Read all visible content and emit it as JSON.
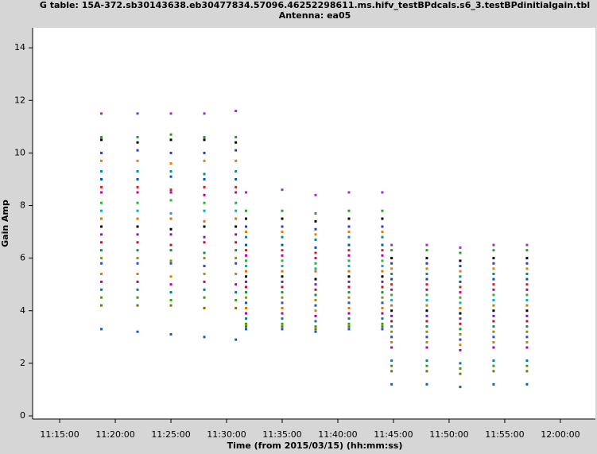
{
  "chart_data": {
    "type": "scatter",
    "title": "G table: 15A-372.sb30143638.eb30477834.57096.46252298611.ms.hifv_testBPdcals.s6_3.testBPdinitialgain.tbl",
    "subtitle": "Antenna: ea05",
    "xlabel": "Time (from 2015/03/15) (hh:mm:ss)",
    "ylabel": "Gain Amp",
    "xlim": [
      "11:12:34",
      "12:03:09"
    ],
    "xticks": [
      "11:15:00",
      "11:20:00",
      "11:25:00",
      "11:30:00",
      "11:35:00",
      "11:40:00",
      "11:45:00",
      "11:50:00",
      "11:55:00",
      "12:00:00"
    ],
    "ylim": [
      -0.12,
      14.76
    ],
    "yticks": [
      0,
      2,
      4,
      6,
      8,
      10,
      12,
      14
    ],
    "x": [
      "11:18:45",
      "11:22:00",
      "11:25:00",
      "11:28:00",
      "11:30:50",
      "11:31:45",
      "11:35:00",
      "11:38:00",
      "11:41:00",
      "11:44:00",
      "11:44:50",
      "11:48:00",
      "11:51:00",
      "11:54:00",
      "11:57:00"
    ],
    "series": [
      {
        "color": "#9b30c8",
        "values": [
          11.5,
          11.5,
          11.5,
          11.5,
          11.6,
          8.5,
          8.6,
          8.4,
          8.5,
          8.5,
          6.5,
          6.5,
          6.4,
          6.5,
          6.5
        ]
      },
      {
        "color": "#22a022",
        "values": [
          10.6,
          10.6,
          10.7,
          10.6,
          10.6,
          7.8,
          7.8,
          7.7,
          7.8,
          7.8,
          6.3,
          6.3,
          6.2,
          6.3,
          6.3
        ]
      },
      {
        "color": "#000000",
        "values": [
          10.5,
          10.4,
          10.5,
          10.5,
          10.4,
          7.5,
          7.5,
          7.4,
          7.5,
          7.5,
          6.0,
          6.0,
          5.9,
          6.0,
          6.0
        ]
      },
      {
        "color": "#1f3fd0",
        "values": [
          10.0,
          10.1,
          10.0,
          10.0,
          10.1,
          7.2,
          7.2,
          7.1,
          7.2,
          7.2,
          5.8,
          5.8,
          5.7,
          5.8,
          5.8
        ]
      },
      {
        "color": "#e08000",
        "values": [
          9.7,
          9.7,
          9.6,
          9.7,
          9.7,
          7.0,
          7.0,
          6.9,
          7.0,
          7.0,
          5.6,
          5.6,
          5.5,
          5.6,
          5.6
        ]
      },
      {
        "color": "#009090",
        "values": [
          9.3,
          9.3,
          9.3,
          9.2,
          9.3,
          6.8,
          6.8,
          6.7,
          6.8,
          6.8,
          5.4,
          5.4,
          5.3,
          5.4,
          5.4
        ]
      },
      {
        "color": "#0055aa",
        "values": [
          9.0,
          9.0,
          9.1,
          9.0,
          9.0,
          6.5,
          6.5,
          6.4,
          6.5,
          6.5,
          5.2,
          5.2,
          5.1,
          5.2,
          5.2
        ]
      },
      {
        "color": "#d02020",
        "values": [
          8.7,
          8.7,
          8.6,
          8.7,
          8.7,
          6.3,
          6.3,
          6.2,
          6.3,
          6.3,
          5.0,
          5.0,
          4.9,
          5.0,
          5.0
        ]
      },
      {
        "color": "#c000a0",
        "values": [
          8.5,
          8.5,
          8.5,
          8.4,
          8.5,
          6.1,
          6.1,
          6.0,
          6.1,
          6.1,
          4.8,
          4.8,
          4.7,
          4.8,
          4.8
        ]
      },
      {
        "color": "#30b030",
        "values": [
          8.1,
          8.1,
          8.2,
          8.1,
          8.1,
          5.9,
          5.9,
          5.8,
          5.9,
          5.9,
          4.6,
          4.6,
          4.5,
          4.6,
          4.6
        ]
      },
      {
        "color": "#00b0c0",
        "values": [
          7.8,
          7.8,
          7.7,
          7.8,
          7.8,
          5.7,
          5.7,
          5.6,
          5.7,
          5.7,
          4.4,
          4.4,
          4.3,
          4.4,
          4.4
        ]
      },
      {
        "color": "#e07000",
        "values": [
          7.5,
          7.5,
          7.5,
          7.4,
          7.5,
          5.5,
          5.5,
          5.5,
          5.5,
          5.5,
          4.2,
          4.2,
          4.1,
          4.2,
          4.2
        ]
      },
      {
        "color": "#000000",
        "values": [
          7.2,
          7.2,
          7.1,
          7.2,
          7.2,
          5.3,
          5.3,
          5.2,
          5.3,
          5.3,
          4.0,
          4.0,
          3.9,
          4.0,
          4.0
        ]
      },
      {
        "color": "#7020c0",
        "values": [
          6.9,
          6.9,
          6.9,
          6.8,
          6.9,
          5.1,
          5.1,
          5.0,
          5.1,
          5.1,
          3.8,
          3.8,
          3.7,
          3.8,
          3.8
        ]
      },
      {
        "color": "#c01030",
        "values": [
          6.6,
          6.6,
          6.5,
          6.6,
          6.6,
          4.9,
          4.9,
          4.8,
          4.9,
          4.9,
          3.6,
          3.6,
          3.5,
          3.6,
          3.6
        ]
      },
      {
        "color": "#109040",
        "values": [
          6.3,
          6.3,
          6.3,
          6.2,
          6.3,
          4.7,
          4.7,
          4.6,
          4.7,
          4.7,
          3.4,
          3.4,
          3.3,
          3.4,
          3.4
        ]
      },
      {
        "color": "#909000",
        "values": [
          6.0,
          6.0,
          5.9,
          6.0,
          6.0,
          4.5,
          4.5,
          4.4,
          4.5,
          4.5,
          3.2,
          3.2,
          3.1,
          3.2,
          3.2
        ]
      },
      {
        "color": "#2050d0",
        "values": [
          5.8,
          5.8,
          5.8,
          5.7,
          5.8,
          4.3,
          4.3,
          4.2,
          4.3,
          4.3,
          3.0,
          3.0,
          2.9,
          3.0,
          3.0
        ]
      },
      {
        "color": "#d08000",
        "values": [
          5.4,
          5.4,
          5.3,
          5.4,
          5.4,
          4.1,
          4.1,
          4.0,
          4.1,
          4.1,
          2.8,
          2.8,
          2.7,
          2.8,
          2.8
        ]
      },
      {
        "color": "#b000b0",
        "values": [
          5.1,
          5.1,
          5.0,
          5.1,
          5.0,
          3.9,
          3.9,
          3.8,
          3.9,
          3.9,
          2.6,
          2.6,
          2.5,
          2.6,
          2.6
        ]
      },
      {
        "color": "#008080",
        "values": [
          4.8,
          4.8,
          4.7,
          4.8,
          4.7,
          3.7,
          3.7,
          3.6,
          3.7,
          3.7,
          2.1,
          2.1,
          2.0,
          2.1,
          2.1
        ]
      },
      {
        "color": "#40a000",
        "values": [
          4.5,
          4.5,
          4.4,
          4.5,
          4.4,
          3.5,
          3.5,
          3.4,
          3.5,
          3.5,
          1.9,
          1.9,
          1.8,
          1.9,
          1.9
        ]
      },
      {
        "color": "#807000",
        "values": [
          4.2,
          4.2,
          4.2,
          4.1,
          4.1,
          3.4,
          3.4,
          3.3,
          3.4,
          3.4,
          1.7,
          1.7,
          1.6,
          1.7,
          1.7
        ]
      },
      {
        "color": "#1060b0",
        "values": [
          3.3,
          3.2,
          3.1,
          3.0,
          2.9,
          3.3,
          3.3,
          3.2,
          3.3,
          3.3,
          1.2,
          1.2,
          1.1,
          1.2,
          1.2
        ]
      }
    ]
  }
}
